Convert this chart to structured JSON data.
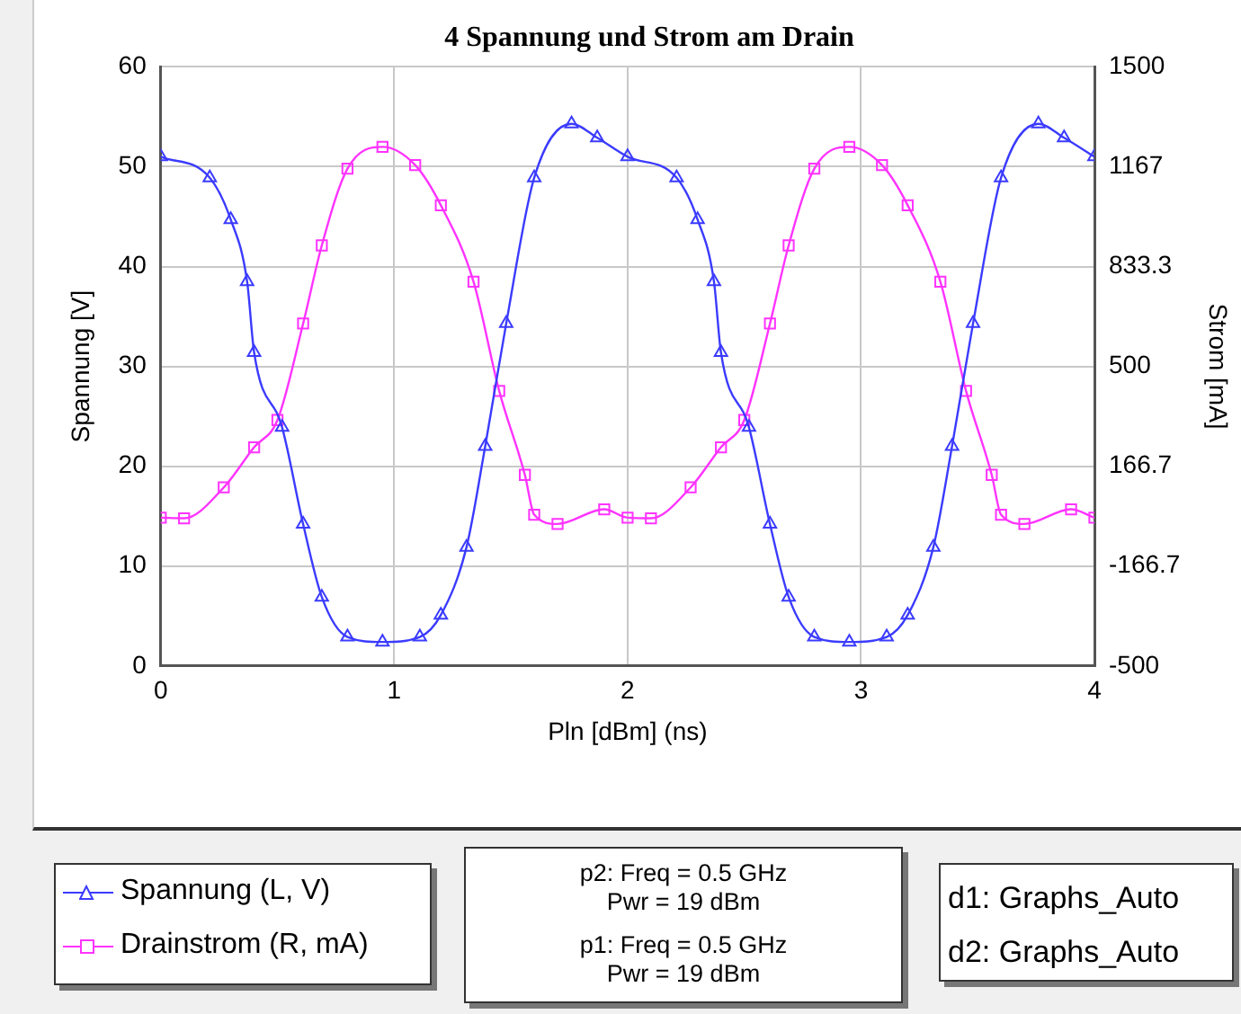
{
  "chart_data": {
    "type": "line",
    "title": "4 Spannung und Strom am Drain",
    "xlabel": "Pln [dBm] (ns)",
    "ylabel": "Spannung [V]",
    "y2label": "Strom [mA]",
    "xlim": [
      0,
      4
    ],
    "xticks": [
      0,
      1,
      2,
      3,
      4
    ],
    "ylim": [
      0,
      60
    ],
    "yticks": [
      0,
      10,
      20,
      30,
      40,
      50,
      60
    ],
    "y2lim": [
      -500,
      1500
    ],
    "y2ticks": [
      -500,
      {
        "value": -166.7,
        "label": "-166.7"
      },
      {
        "value": 166.7,
        "label": "166.7"
      },
      500,
      {
        "value": 833.3,
        "label": "833.3"
      },
      {
        "value": 1166.7,
        "label": "1167"
      },
      1500
    ],
    "grid": true,
    "legend": "bottom left",
    "line_style": "solid",
    "series": [
      {
        "name": "Spannung (L, V)",
        "color": "#3b3bff",
        "marker": "triangle",
        "x": [
          0,
          0.21,
          0.3,
          0.37,
          0.4,
          0.52,
          0.61,
          0.69,
          0.8,
          0.95,
          1.11,
          1.2,
          1.31,
          1.39,
          1.48,
          1.6,
          1.76,
          1.87,
          2,
          2.21,
          2.3,
          2.37,
          2.4,
          2.52,
          2.61,
          2.69,
          2.8,
          2.95,
          3.11,
          3.2,
          3.31,
          3.39,
          3.48,
          3.6,
          3.76,
          3.87,
          4
        ],
        "values": [
          51,
          48.9,
          44.7,
          38.5,
          31.4,
          23.9,
          14.2,
          6.9,
          2.9,
          2.4,
          2.9,
          5.1,
          11.9,
          22,
          34.3,
          48.9,
          54.3,
          52.9,
          51,
          48.9,
          44.7,
          38.5,
          31.4,
          23.9,
          14.2,
          6.9,
          2.9,
          2.4,
          2.9,
          5.1,
          11.9,
          22,
          34.3,
          48.9,
          54.3,
          52.9,
          51
        ]
      },
      {
        "name": "Drainstrom (R, mA)",
        "color": "#ff33ff",
        "marker": "square",
        "axis": "y2",
        "x": [
          0,
          0.1,
          0.27,
          0.4,
          0.5,
          0.61,
          0.69,
          0.8,
          0.95,
          1.09,
          1.2,
          1.34,
          1.45,
          1.56,
          1.6,
          1.7,
          1.9,
          2,
          2.1,
          2.27,
          2.4,
          2.5,
          2.61,
          2.69,
          2.8,
          2.95,
          3.09,
          3.2,
          3.34,
          3.45,
          3.56,
          3.6,
          3.7,
          3.9,
          4
        ],
        "values": [
          -5,
          -7,
          96,
          230,
          321,
          643,
          904,
          1160,
          1233,
          1172,
          1038,
          783,
          418,
          138,
          5,
          -26,
          23,
          -5,
          -7,
          96,
          230,
          321,
          643,
          904,
          1160,
          1233,
          1172,
          1038,
          783,
          418,
          138,
          5,
          -26,
          23,
          -5
        ]
      }
    ],
    "annotations": [
      "p2: Freq = 0.5 GHz",
      "Pwr = 19 dBm",
      "p1: Freq = 0.5 GHz",
      "Pwr = 19 dBm",
      "d1: Graphs_Auto",
      "d2: Graphs_Auto"
    ]
  }
}
